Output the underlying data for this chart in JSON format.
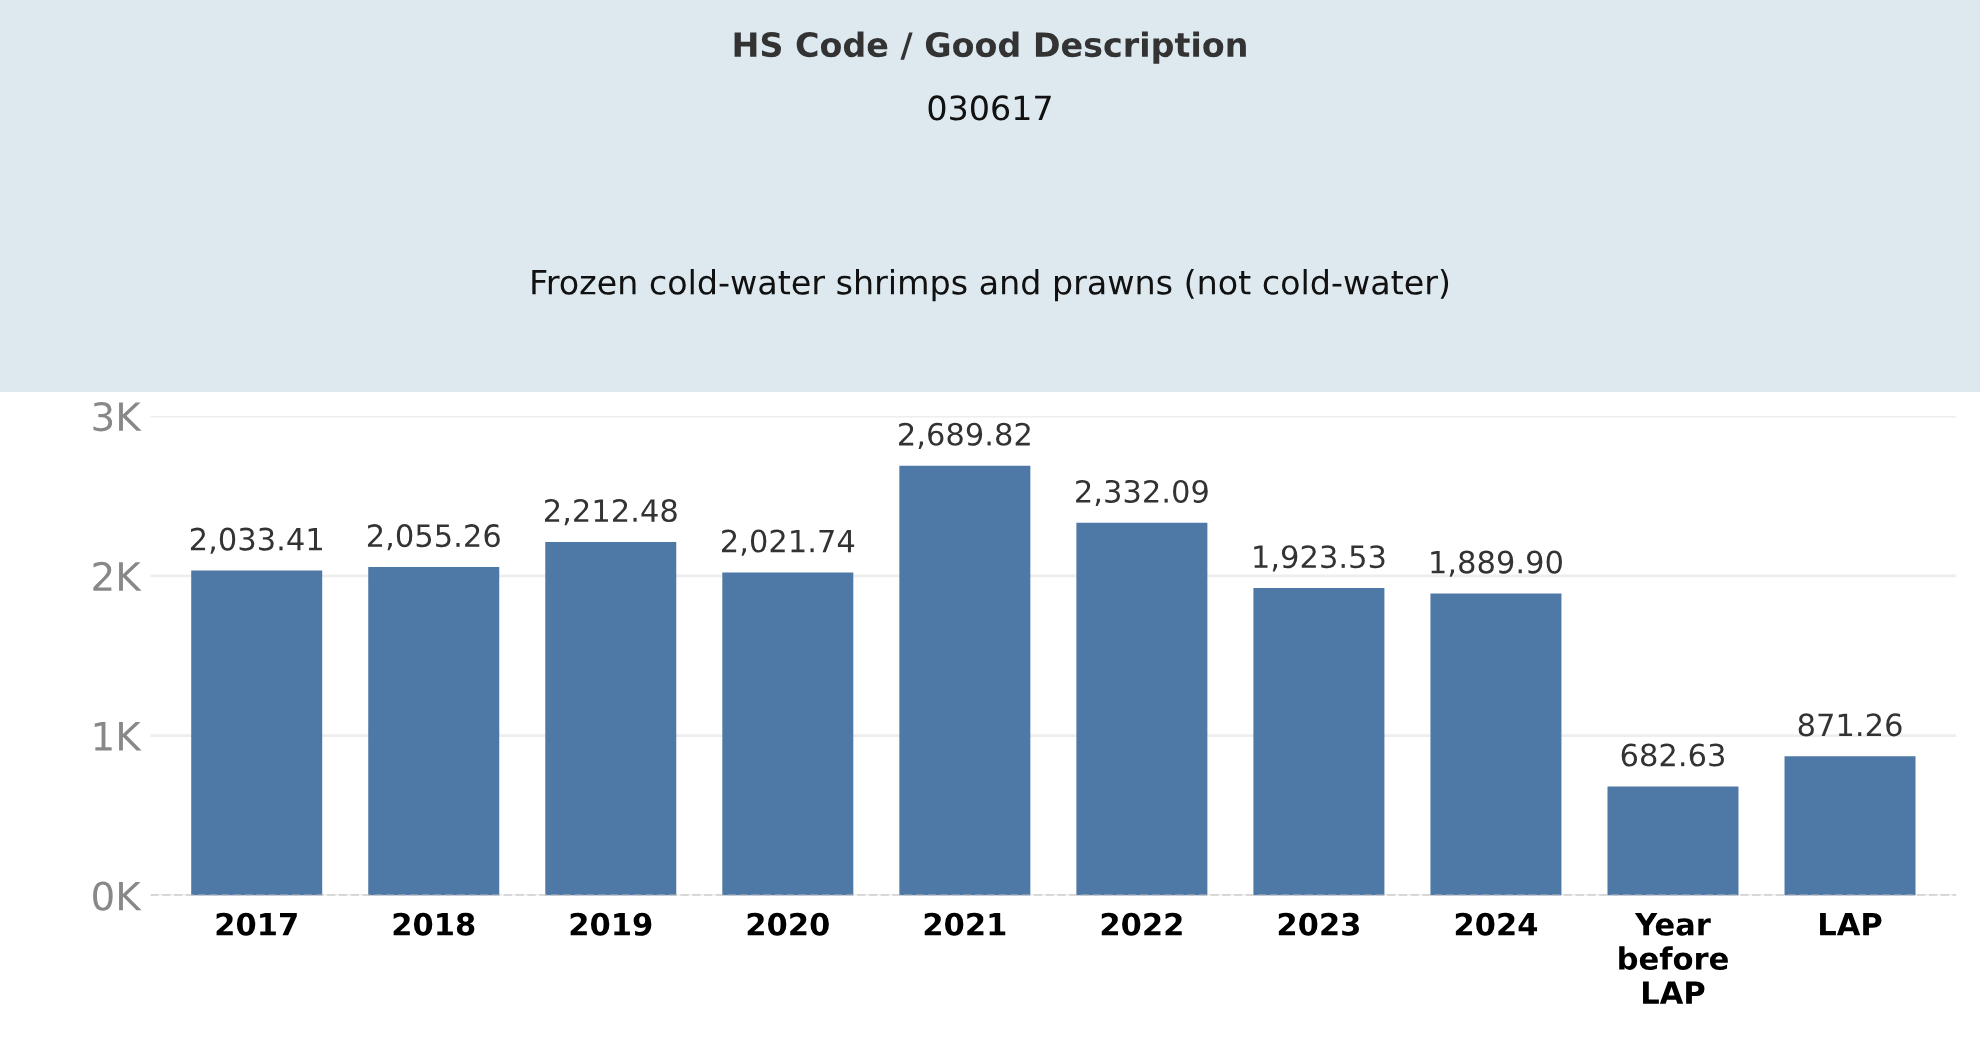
{
  "chart_data": {
    "type": "bar",
    "title": "HS Code / Good Description",
    "subtitle": "030617",
    "annotations": [
      "Frozen cold-water shrimps and prawns (not cold-water)"
    ],
    "categories": [
      "2017",
      "2018",
      "2019",
      "2020",
      "2021",
      "2022",
      "2023",
      "2024",
      "Year\nbefore\nLAP",
      "LAP"
    ],
    "values": [
      2033.41,
      2055.26,
      2212.48,
      2021.74,
      2689.82,
      2332.09,
      1923.53,
      1889.9,
      682.63,
      871.26
    ],
    "value_labels": [
      "2,033.41",
      "2,055.26",
      "2,212.48",
      "2,021.74",
      "2,689.82",
      "2,332.09",
      "1,923.53",
      "1,889.90",
      "682.63",
      "871.26"
    ],
    "color": "#4e79a7",
    "ylim": [
      0,
      3000
    ],
    "yticks": [
      {
        "value": 0,
        "label": "0K"
      },
      {
        "value": 1000,
        "label": "1K"
      },
      {
        "value": 2000,
        "label": "2K"
      },
      {
        "value": 3000,
        "label": "3K"
      }
    ],
    "grid": "y"
  }
}
